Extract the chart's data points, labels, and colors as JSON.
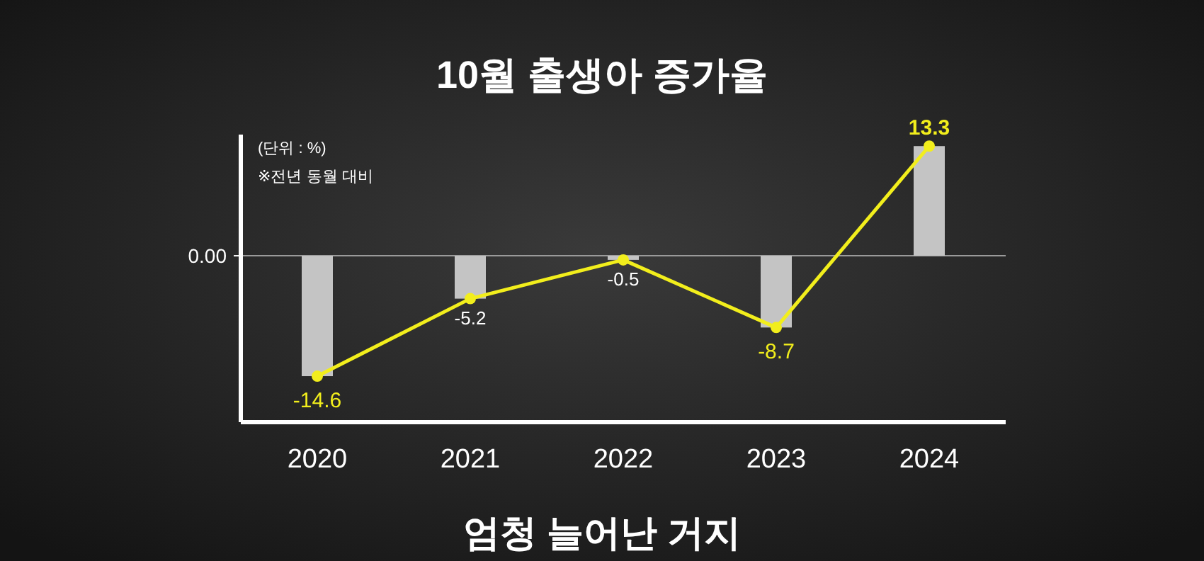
{
  "chart_data": {
    "type": "bar",
    "title": "10월 출생아 증가율",
    "categories": [
      "2020",
      "2021",
      "2022",
      "2023",
      "2024"
    ],
    "series": [
      {
        "color": "#c4c4c4",
        "values": [
          -14.6,
          -5.2,
          -0.5,
          -8.7,
          13.3
        ],
        "value_labels": [
          null,
          "-5.2",
          "-0.5",
          null,
          null
        ]
      },
      {
        "type": "line",
        "color": "#f2ee1c",
        "values": [
          -14.6,
          -5.2,
          -0.5,
          -8.7,
          13.3
        ],
        "value_labels": [
          "-14.6",
          null,
          null,
          "-8.7",
          "13.3"
        ]
      }
    ],
    "marker": "circle",
    "line_style": "solid",
    "annotations": [
      "(단위 : %)",
      "※전년 동월 대비",
      "엄청 늘어난 거지",
      "0.00"
    ]
  }
}
